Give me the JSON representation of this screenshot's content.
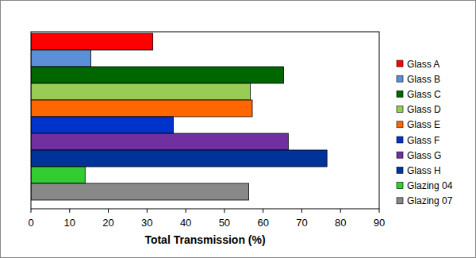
{
  "chart_data": {
    "type": "bar",
    "orientation": "horizontal",
    "categories": [
      "Glass A",
      "Glass B",
      "Glass C",
      "Glass D",
      "Glass E",
      "Glass F",
      "Glass G",
      "Glass H",
      "Glazing 04",
      "Glazing 07"
    ],
    "values": [
      31.5,
      15.5,
      65.3,
      56.7,
      57.2,
      36.8,
      66.5,
      76.5,
      14,
      56.3
    ],
    "colors": [
      "#ff0000",
      "#5b8fd8",
      "#006600",
      "#99cc55",
      "#ff6600",
      "#0033cc",
      "#7030a0",
      "#003399",
      "#33cc33",
      "#888888"
    ],
    "x_label": "Total Transmission (%)",
    "xlim": [
      0,
      90
    ],
    "xticks": [
      0,
      10,
      20,
      30,
      40,
      50,
      60,
      70,
      80,
      90
    ],
    "grid": false,
    "legend": "right",
    "tick_labels": "x"
  }
}
